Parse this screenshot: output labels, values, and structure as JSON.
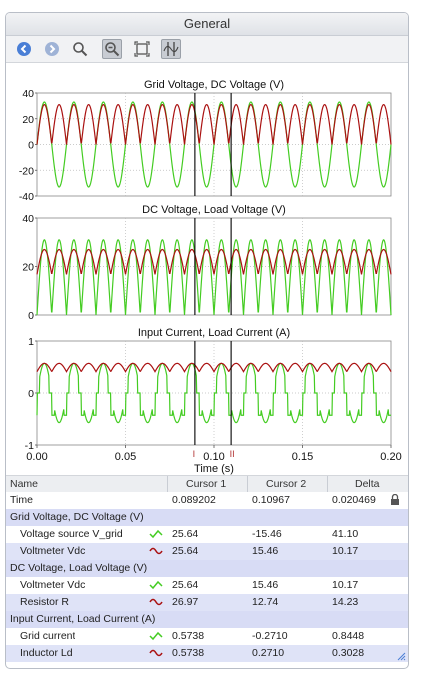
{
  "window": {
    "title": "General"
  },
  "toolbar": {
    "buttons": [
      {
        "name": "back-icon",
        "label": "Back"
      },
      {
        "name": "forward-icon",
        "label": "Forward"
      },
      {
        "name": "zoom-icon",
        "label": "Zoom"
      },
      {
        "name": "zoom-out-icon",
        "label": "Zoom out"
      },
      {
        "name": "fit-icon",
        "label": "Fit"
      },
      {
        "name": "cursor-icon",
        "label": "Cursors"
      }
    ]
  },
  "colors": {
    "red": "#aa1111",
    "green": "#44cc22",
    "cursor": "#000000",
    "group_row": "#d8dcf5"
  },
  "chart_data": [
    {
      "type": "line",
      "title": "Grid Voltage, DC Voltage (V)",
      "ylim": [
        -40,
        40
      ],
      "yticks": [
        "40",
        "20",
        "0",
        "-20",
        "-40"
      ],
      "xlim": [
        0,
        0.2
      ],
      "series": [
        {
          "name": "Voltage source V_grid",
          "color": "#44cc22",
          "shape": "sine",
          "amplitude": 33,
          "frequency": 60
        },
        {
          "name": "Voltmeter Vdc",
          "color": "#aa1111",
          "shape": "abs_sine",
          "amplitude": 31,
          "frequency": 60
        }
      ]
    },
    {
      "type": "line",
      "title": "DC Voltage, Load Voltage (V)",
      "ylim": [
        0,
        40
      ],
      "yticks": [
        "40",
        "20",
        "0"
      ],
      "xlim": [
        0,
        0.2
      ],
      "series": [
        {
          "name": "Voltmeter Vdc",
          "color": "#44cc22",
          "shape": "abs_sine",
          "amplitude": 31,
          "frequency": 60
        },
        {
          "name": "Resistor R",
          "color": "#aa1111",
          "shape": "ripple",
          "amplitude": 27,
          "frequency": 60
        }
      ]
    },
    {
      "type": "line",
      "title": "Input Current, Load Current (A)",
      "ylim": [
        -1,
        1
      ],
      "yticks": [
        "1",
        "0",
        "-1"
      ],
      "xlim": [
        0,
        0.2
      ],
      "xticks": [
        "0.00",
        "0.05",
        "0.10",
        "0.15",
        "0.20"
      ],
      "xlabel": "Time (s)",
      "series": [
        {
          "name": "Grid current",
          "color": "#44cc22",
          "shape": "pulse",
          "amplitude": 0.57,
          "frequency": 60
        },
        {
          "name": "Inductor Ld",
          "color": "#aa1111",
          "shape": "ripple_current",
          "amplitude": 0.57,
          "frequency": 60
        }
      ]
    }
  ],
  "cursors": {
    "cursor1": 0.089202,
    "cursor2": 0.10967,
    "marker1": "I",
    "marker2": "II"
  },
  "table": {
    "columns": [
      "Name",
      "Cursor 1",
      "Cursor 2",
      "Delta"
    ],
    "time_row": {
      "name": "Time",
      "c1": "0.089202",
      "c2": "0.10967",
      "delta": "0.020469"
    },
    "groups": [
      {
        "title": "Grid Voltage, DC Voltage (V)",
        "rows": [
          {
            "name": "Voltage source V_grid",
            "signal": "green",
            "c1": "25.64",
            "c2": "-15.46",
            "delta": "41.10"
          },
          {
            "name": "Voltmeter Vdc",
            "signal": "red",
            "c1": "25.64",
            "c2": "15.46",
            "delta": "10.17"
          }
        ]
      },
      {
        "title": "DC Voltage, Load Voltage (V)",
        "rows": [
          {
            "name": "Voltmeter Vdc",
            "signal": "green",
            "c1": "25.64",
            "c2": "15.46",
            "delta": "10.17"
          },
          {
            "name": "Resistor R",
            "signal": "red",
            "c1": "26.97",
            "c2": "12.74",
            "delta": "14.23"
          }
        ]
      },
      {
        "title": "Input Current, Load Current (A)",
        "rows": [
          {
            "name": "Grid current",
            "signal": "green",
            "c1": "0.5738",
            "c2": "-0.2710",
            "delta": "0.8448"
          },
          {
            "name": "Inductor Ld",
            "signal": "red",
            "c1": "0.5738",
            "c2": "0.2710",
            "delta": "0.3028"
          }
        ]
      }
    ]
  }
}
